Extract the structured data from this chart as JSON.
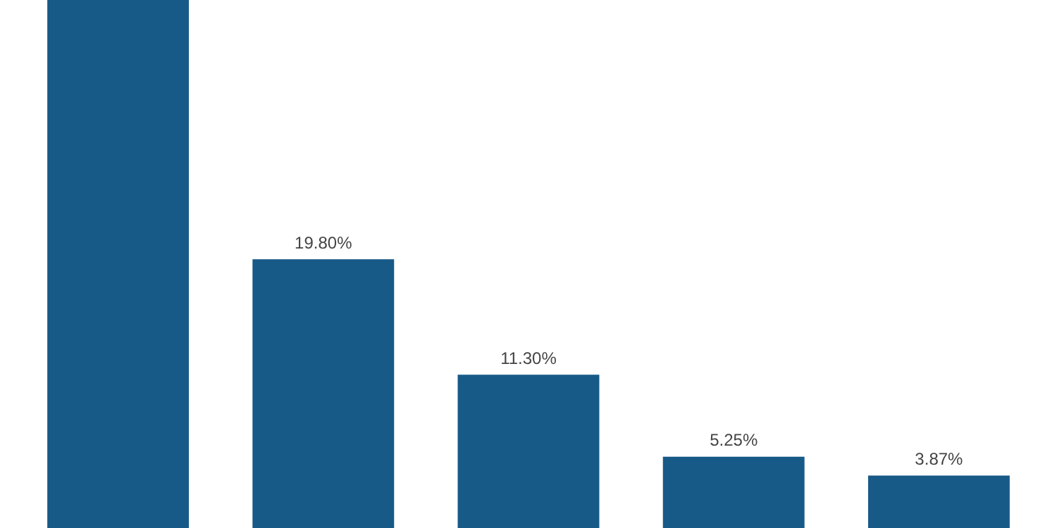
{
  "chart_data": {
    "type": "bar",
    "relative": false,
    "categories": [
      null,
      null,
      null,
      null,
      null
    ],
    "values": [
      38.9,
      19.8,
      11.3,
      5.25,
      3.87
    ],
    "value_labels": [
      null,
      "19.80%",
      "11.30%",
      "5.25%",
      "3.87%"
    ],
    "color": "#175a88",
    "ylim": [
      0,
      38.9
    ],
    "tick_labels": false,
    "grid": false,
    "legend": false
  }
}
